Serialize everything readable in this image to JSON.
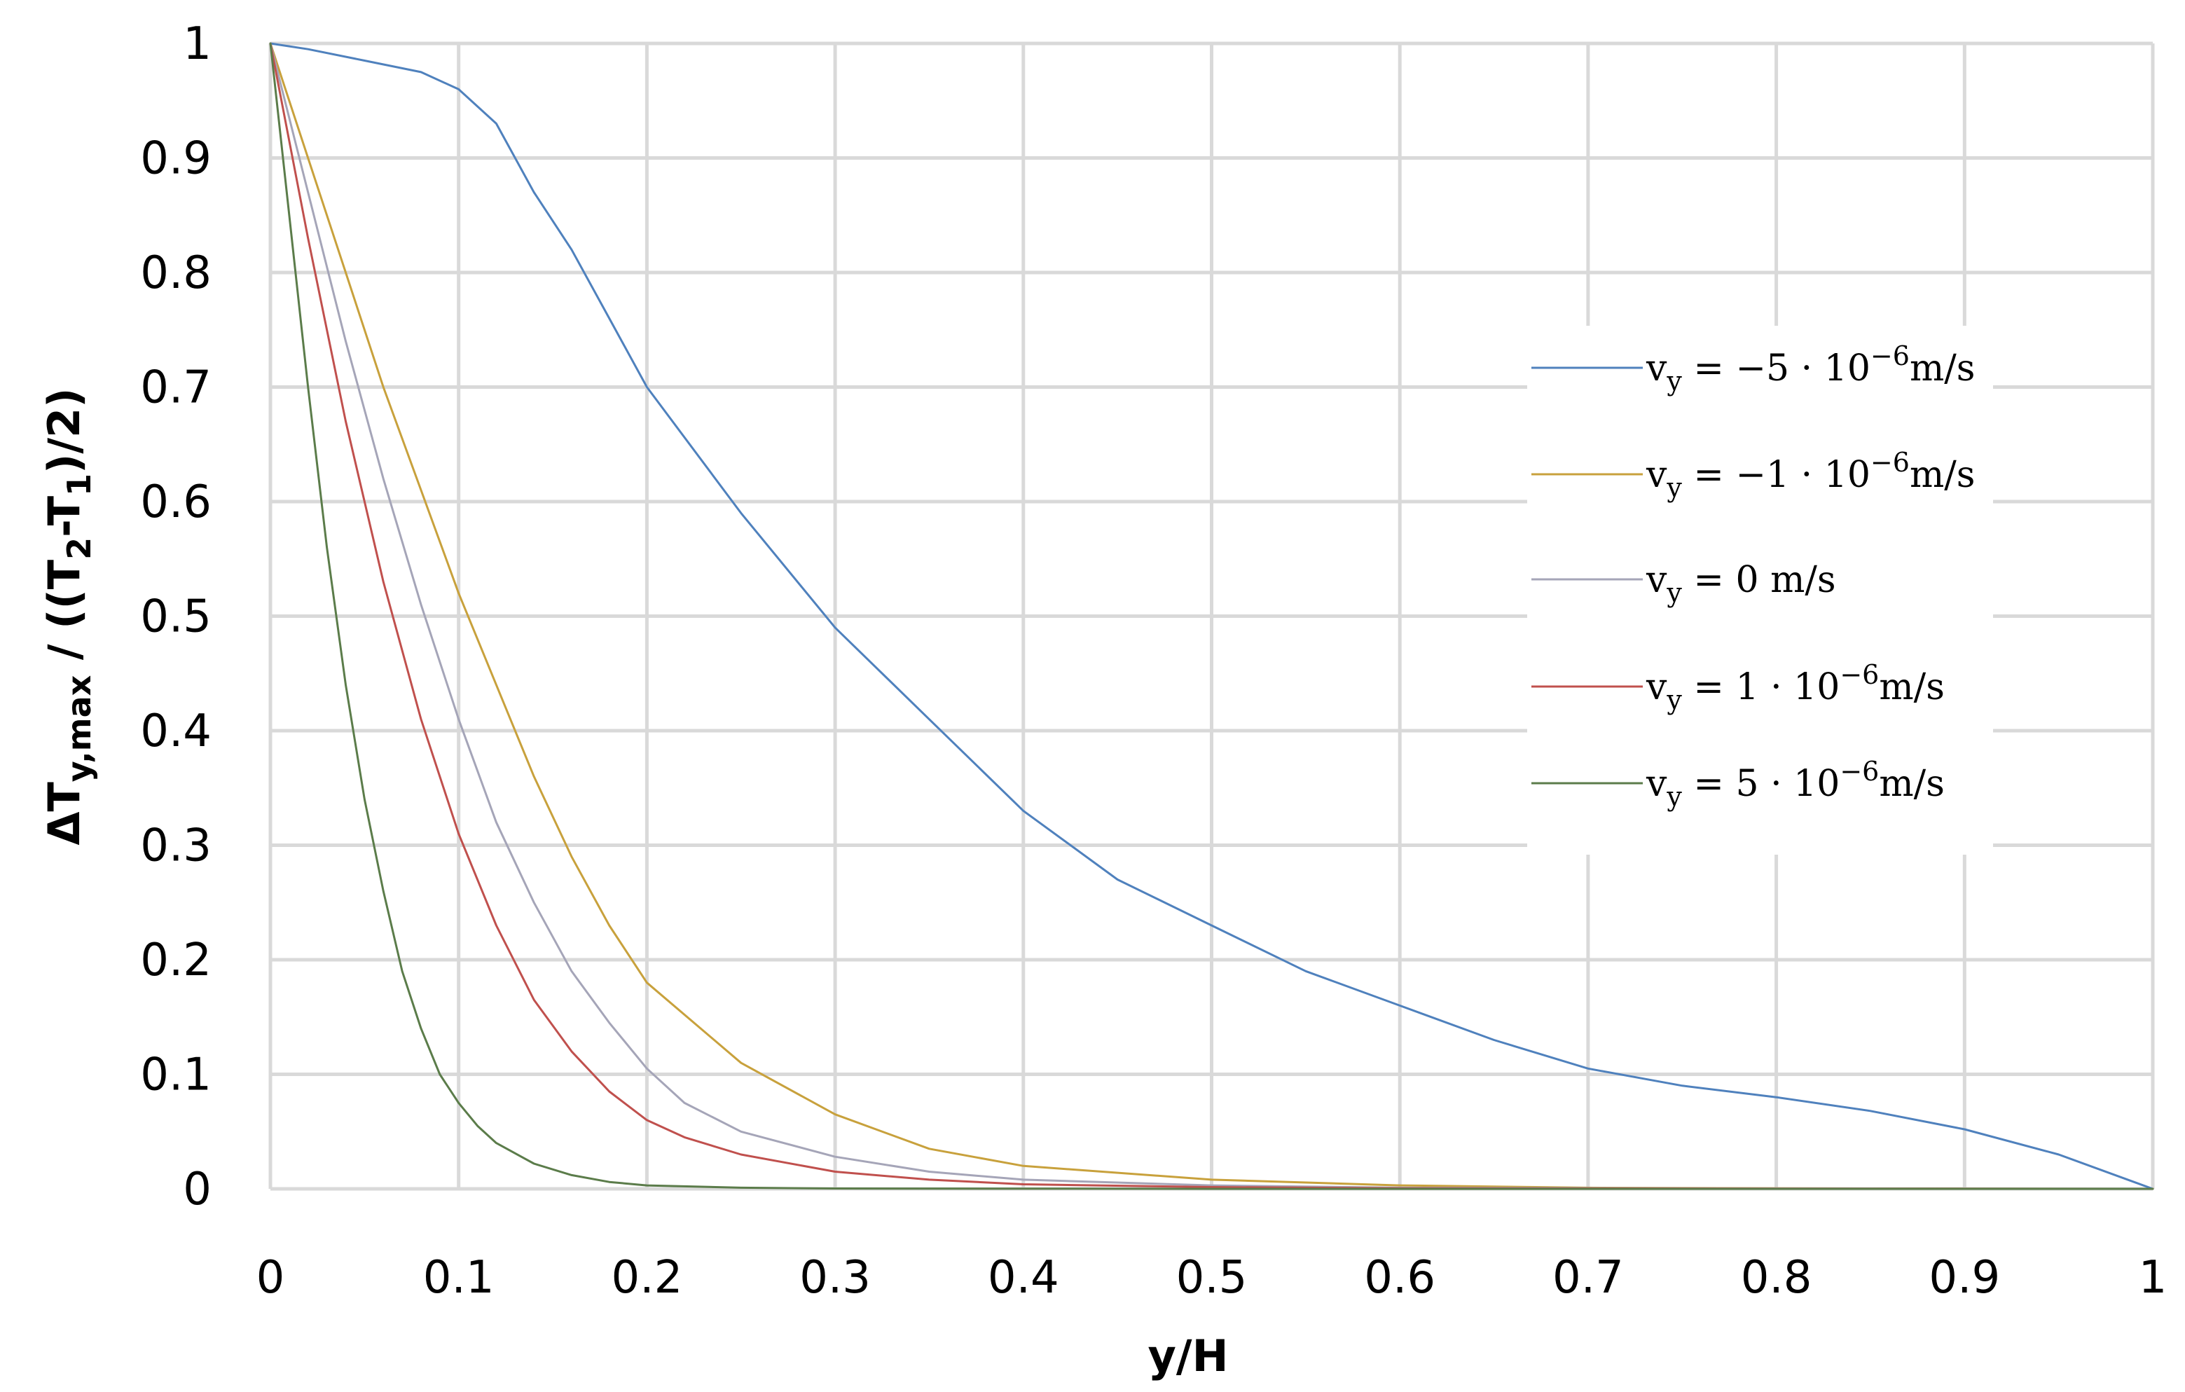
{
  "chart_data": {
    "type": "line",
    "xlabel": "y/H",
    "ylabel": {
      "base": "ΔT",
      "sub1": "y,max",
      "mid1": " / ((T",
      "sub2": "2",
      "mid2": "-T",
      "sub3": "1",
      "end": ")/2)"
    },
    "xlim": [
      0,
      1
    ],
    "ylim": [
      0,
      1
    ],
    "x_ticks": [
      "0",
      "0.1",
      "0.2",
      "0.3",
      "0.4",
      "0.5",
      "0.6",
      "0.7",
      "0.8",
      "0.9",
      "1"
    ],
    "y_ticks": [
      "0",
      "0.1",
      "0.2",
      "0.3",
      "0.4",
      "0.5",
      "0.6",
      "0.7",
      "0.8",
      "0.9",
      "1"
    ],
    "grid": true,
    "legend_position": "right",
    "series": [
      {
        "name": "v_y = −5 · 10^−6 m/s",
        "legend": {
          "pre": "v",
          "sub": "y",
          "mid": " = −5 · 10",
          "sup": "−6",
          "post": "m/s"
        },
        "color": "#4f81bd",
        "x": [
          0,
          0.02,
          0.05,
          0.08,
          0.1,
          0.12,
          0.14,
          0.16,
          0.18,
          0.2,
          0.25,
          0.3,
          0.35,
          0.4,
          0.45,
          0.5,
          0.55,
          0.6,
          0.65,
          0.7,
          0.75,
          0.8,
          0.85,
          0.9,
          0.95,
          1.0
        ],
        "y": [
          1.0,
          0.995,
          0.985,
          0.975,
          0.96,
          0.93,
          0.87,
          0.82,
          0.76,
          0.7,
          0.59,
          0.49,
          0.41,
          0.33,
          0.27,
          0.23,
          0.19,
          0.16,
          0.13,
          0.105,
          0.09,
          0.08,
          0.068,
          0.052,
          0.03,
          0.0
        ]
      },
      {
        "name": "v_y = −1 · 10^−6 m/s",
        "legend": {
          "pre": "v",
          "sub": "y",
          "mid": " = −1 · 10",
          "sup": "−6",
          "post": "m/s"
        },
        "color": "#c8a13c",
        "x": [
          0,
          0.02,
          0.04,
          0.06,
          0.08,
          0.1,
          0.12,
          0.14,
          0.16,
          0.18,
          0.2,
          0.25,
          0.3,
          0.35,
          0.4,
          0.5,
          0.6,
          0.7,
          0.8,
          0.9,
          1.0
        ],
        "y": [
          1.0,
          0.9,
          0.8,
          0.7,
          0.61,
          0.52,
          0.44,
          0.36,
          0.29,
          0.23,
          0.18,
          0.11,
          0.065,
          0.035,
          0.02,
          0.008,
          0.003,
          0.001,
          0.0005,
          0.0002,
          0.0
        ]
      },
      {
        "name": "v_y = 0 m/s",
        "legend": {
          "pre": "v",
          "sub": "y",
          "mid": " = 0 m/s",
          "sup": "",
          "post": ""
        },
        "color": "#a5a5b8",
        "x": [
          0,
          0.02,
          0.04,
          0.06,
          0.08,
          0.1,
          0.12,
          0.14,
          0.16,
          0.18,
          0.2,
          0.22,
          0.25,
          0.3,
          0.35,
          0.4,
          0.5,
          0.6,
          0.8,
          1.0
        ],
        "y": [
          1.0,
          0.87,
          0.74,
          0.62,
          0.51,
          0.41,
          0.32,
          0.25,
          0.19,
          0.145,
          0.105,
          0.075,
          0.05,
          0.028,
          0.015,
          0.008,
          0.003,
          0.001,
          0.0003,
          0.0
        ]
      },
      {
        "name": "v_y = 1 · 10^−6 m/s",
        "legend": {
          "pre": "v",
          "sub": "y",
          "mid": " = 1 · 10",
          "sup": "−6",
          "post": "m/s"
        },
        "color": "#c0504d",
        "x": [
          0,
          0.02,
          0.04,
          0.06,
          0.08,
          0.1,
          0.12,
          0.14,
          0.16,
          0.18,
          0.2,
          0.22,
          0.25,
          0.3,
          0.35,
          0.4,
          0.5,
          0.6,
          0.8,
          1.0
        ],
        "y": [
          1.0,
          0.83,
          0.67,
          0.53,
          0.41,
          0.31,
          0.23,
          0.165,
          0.12,
          0.085,
          0.06,
          0.045,
          0.03,
          0.015,
          0.008,
          0.004,
          0.0015,
          0.0005,
          0.0001,
          0.0
        ]
      },
      {
        "name": "v_y = 5 · 10^−6 m/s",
        "legend": {
          "pre": "v",
          "sub": "y",
          "mid": " = 5 · 10",
          "sup": "−6",
          "post": "m/s"
        },
        "color": "#5b7c4a",
        "x": [
          0,
          0.01,
          0.02,
          0.03,
          0.04,
          0.05,
          0.06,
          0.07,
          0.08,
          0.09,
          0.1,
          0.11,
          0.12,
          0.14,
          0.16,
          0.18,
          0.2,
          0.25,
          0.3,
          0.5,
          1.0
        ],
        "y": [
          1.0,
          0.85,
          0.7,
          0.56,
          0.44,
          0.34,
          0.26,
          0.19,
          0.14,
          0.1,
          0.075,
          0.055,
          0.04,
          0.022,
          0.012,
          0.006,
          0.003,
          0.001,
          0.0003,
          0.0,
          0.0
        ]
      }
    ]
  }
}
